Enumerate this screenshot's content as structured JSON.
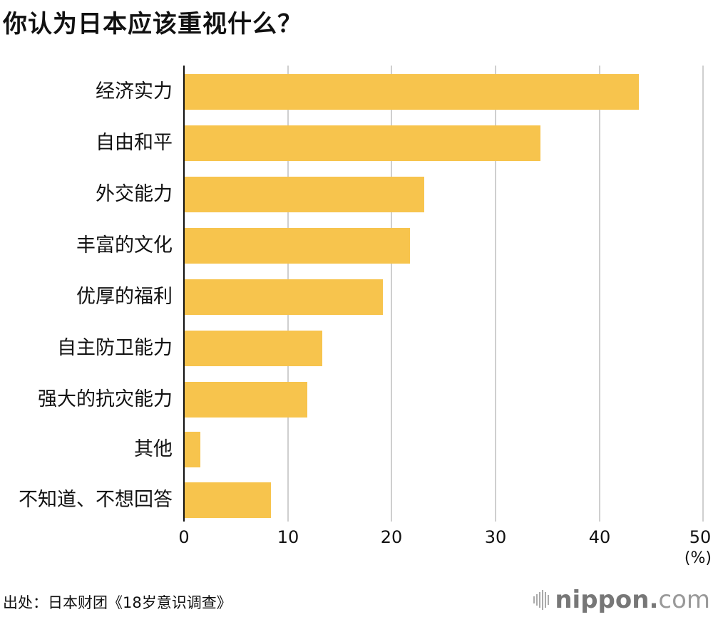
{
  "title": "你认为日本应该重视什么？",
  "chart_data": {
    "type": "bar",
    "orientation": "horizontal",
    "title": "你认为日本应该重视什么？",
    "categories": [
      "经济实力",
      "自由和平",
      "外交能力",
      "丰富的文化",
      "优厚的福利",
      "自主防卫能力",
      "强大的抗灾能力",
      "其他",
      "不知道、不想回答"
    ],
    "values": [
      43.8,
      34.3,
      23.1,
      21.7,
      19.1,
      13.3,
      11.8,
      1.5,
      8.3
    ],
    "xlabel": "(%)",
    "ylabel": "",
    "xlim": [
      0,
      50
    ],
    "xticks": [
      0,
      10,
      20,
      30,
      40,
      50
    ],
    "grid": true,
    "bar_color": "#f7c44d"
  },
  "axis": {
    "ticks": [
      "0",
      "10",
      "20",
      "30",
      "40",
      "50"
    ],
    "unit": "(%)"
  },
  "footer": {
    "source": "出处：日本财团《18岁意识调查》",
    "logo_main": "nippon",
    "logo_dot": ".",
    "logo_suffix": "com"
  }
}
